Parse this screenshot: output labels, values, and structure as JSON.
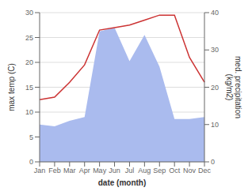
{
  "chart_data": {
    "type": "line",
    "xlabel": "date (month)",
    "ylabel": "max temp (C)",
    "y2label": "med. precipitation\n(kg/m2)",
    "categories": [
      "Jan",
      "Feb",
      "Mar",
      "Apr",
      "May",
      "Jun",
      "Jul",
      "Aug",
      "Sep",
      "Oct",
      "Nov",
      "Dec"
    ],
    "series": [
      {
        "type": "area",
        "color": "#aabbee",
        "axis": "y2",
        "values": [
          10.0,
          9.5,
          11.0,
          12.0,
          35.0,
          36.0,
          27.0,
          34.0,
          25.5,
          11.5,
          11.5,
          12.0
        ]
      },
      {
        "type": "line",
        "color": "#cc3333",
        "values": [
          12.5,
          13.0,
          16.0,
          19.5,
          26.5,
          27.0,
          27.5,
          28.5,
          29.5,
          29.5,
          21.0,
          16.0
        ]
      }
    ],
    "ylim": [
      0,
      30
    ],
    "yticks": [
      0,
      5,
      10,
      15,
      20,
      25,
      30
    ],
    "y2lim": [
      0,
      40
    ],
    "y2ticks": [
      0,
      10,
      20,
      30,
      40
    ],
    "grid": true
  }
}
